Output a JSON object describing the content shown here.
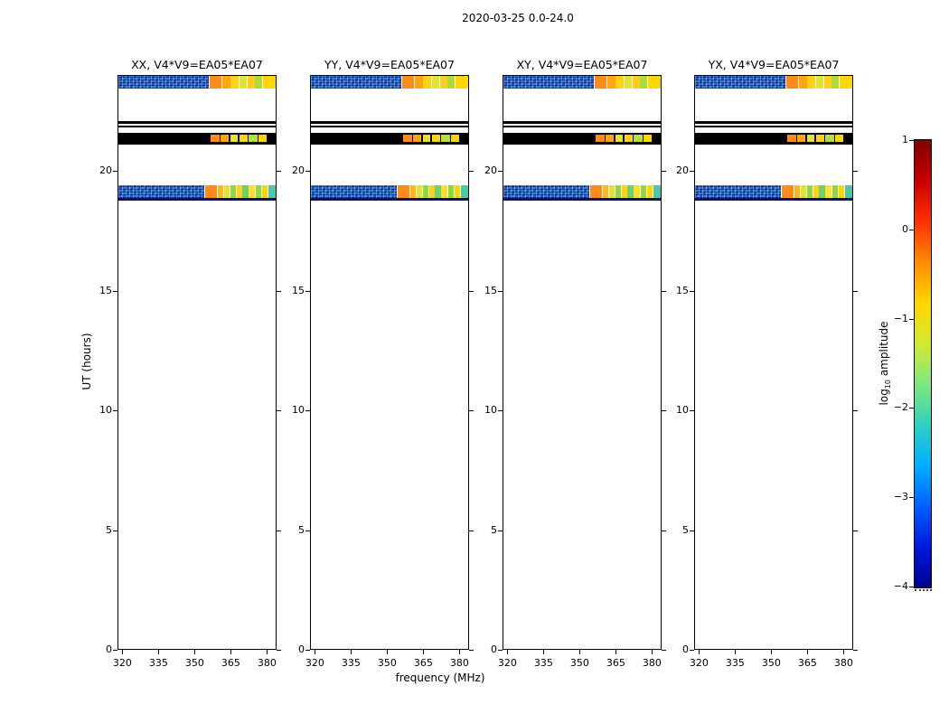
{
  "figure": {
    "suptitle": "2020-03-25 0.0-24.0",
    "xlabel": "frequency (MHz)",
    "ylabel": "UT (hours)"
  },
  "colorbar": {
    "label_pre": "log",
    "label_sub": "10",
    "label_post": " amplitude",
    "tick_labels": [
      "1",
      "0",
      "−1",
      "−2",
      "−3",
      "−4"
    ],
    "gradient_top_to_bottom": [
      "#7f0000",
      "#c80000",
      "#ff3000",
      "#ff8c00",
      "#ffd700",
      "#d4e830",
      "#7fe87f",
      "#30d0c0",
      "#00b0ff",
      "#0060ff",
      "#0018e0",
      "#000090"
    ]
  },
  "chart_data": {
    "type": "heatmap",
    "title": "2020-03-25 0.0-24.0",
    "panels": [
      {
        "title": "XX, V4*V9=EA05*EA07"
      },
      {
        "title": "YY, V4*V9=EA05*EA07"
      },
      {
        "title": "XY, V4*V9=EA05*EA07"
      },
      {
        "title": "YX, V4*V9=EA05*EA07"
      }
    ],
    "x_axis": {
      "label": "frequency (MHz)",
      "unit": "MHz",
      "ticks": [
        320,
        335,
        350,
        365,
        380
      ],
      "range": [
        318,
        384
      ]
    },
    "y_axis": {
      "label": "UT (hours)",
      "unit": "hours",
      "ticks": [
        0,
        5,
        10,
        15,
        20
      ],
      "range": [
        0,
        24
      ]
    },
    "colorbar": {
      "label": "log10 amplitude",
      "ticks": [
        1,
        0,
        -1,
        -2,
        -3,
        -4
      ],
      "range": [
        -4,
        1
      ],
      "colormap": "jet"
    },
    "bands": [
      {
        "name": "rfi-ut-23p7",
        "ut": [
          23.45,
          23.95
        ],
        "segments": [
          {
            "f": [
              0,
              0.575
            ],
            "c": "speckle"
          },
          {
            "f": [
              0.578,
              0.655
            ],
            "c": "#ff8c1a"
          },
          {
            "f": [
              0.66,
              0.71
            ],
            "c": "#ffa510"
          },
          {
            "f": [
              0.715,
              0.765
            ],
            "c": "#ffd21a"
          },
          {
            "f": [
              0.77,
              0.815
            ],
            "c": "#e3e334"
          },
          {
            "f": [
              0.82,
              0.865
            ],
            "c": "#ffcc20"
          },
          {
            "f": [
              0.87,
              0.915
            ],
            "c": "#abdc3a"
          },
          {
            "f": [
              0.92,
              1.0
            ],
            "c": "#ffd700"
          }
        ]
      },
      {
        "name": "line-ut-22p0",
        "ut": [
          21.98,
          22.08
        ],
        "segments": [
          {
            "f": [
              0,
              1
            ],
            "c": "#000000"
          }
        ]
      },
      {
        "name": "line-ut-21p85",
        "ut": [
          21.8,
          21.88
        ],
        "segments": [
          {
            "f": [
              0,
              1
            ],
            "c": "#000000"
          }
        ]
      },
      {
        "name": "dark-band-ut-21p3",
        "ut": [
          21.1,
          21.59
        ],
        "segments": [
          {
            "f": [
              0,
              1
            ],
            "c": "#000000"
          }
        ],
        "overlays": [
          {
            "f": [
              0.585,
              0.645
            ],
            "c": "#ff8c1a"
          },
          {
            "f": [
              0.65,
              0.7
            ],
            "c": "#ffa510"
          },
          {
            "f": [
              0.71,
              0.76
            ],
            "c": "#e3e334"
          },
          {
            "f": [
              0.77,
              0.82
            ],
            "c": "#ffd21a"
          },
          {
            "f": [
              0.83,
              0.885
            ],
            "c": "#b8e03a"
          },
          {
            "f": [
              0.89,
              0.945
            ],
            "c": "#ffd700"
          }
        ]
      },
      {
        "name": "rfi-ut-19p1",
        "ut": [
          18.88,
          19.4
        ],
        "segments": [
          {
            "f": [
              0,
              0.545
            ],
            "c": "speckle"
          },
          {
            "f": [
              0.55,
              0.625
            ],
            "c": "#ff8c1a"
          },
          {
            "f": [
              0.63,
              0.668
            ],
            "c": "#ffb61e"
          },
          {
            "f": [
              0.673,
              0.705
            ],
            "c": "#e3e334"
          },
          {
            "f": [
              0.71,
              0.745
            ],
            "c": "#8fd93c"
          },
          {
            "f": [
              0.75,
              0.785
            ],
            "c": "#ffd21a"
          },
          {
            "f": [
              0.79,
              0.825
            ],
            "c": "#6fd06f"
          },
          {
            "f": [
              0.83,
              0.868
            ],
            "c": "#ffe030"
          },
          {
            "f": [
              0.873,
              0.908
            ],
            "c": "#8fd93c"
          },
          {
            "f": [
              0.913,
              0.95
            ],
            "c": "#ffd700"
          },
          {
            "f": [
              0.955,
              1.0
            ],
            "c": "#49c9a9"
          }
        ]
      },
      {
        "name": "line-ut-18p8",
        "ut": [
          18.76,
          18.85
        ],
        "segments": [
          {
            "f": [
              0,
              1
            ],
            "c": "#101060"
          }
        ]
      }
    ]
  }
}
